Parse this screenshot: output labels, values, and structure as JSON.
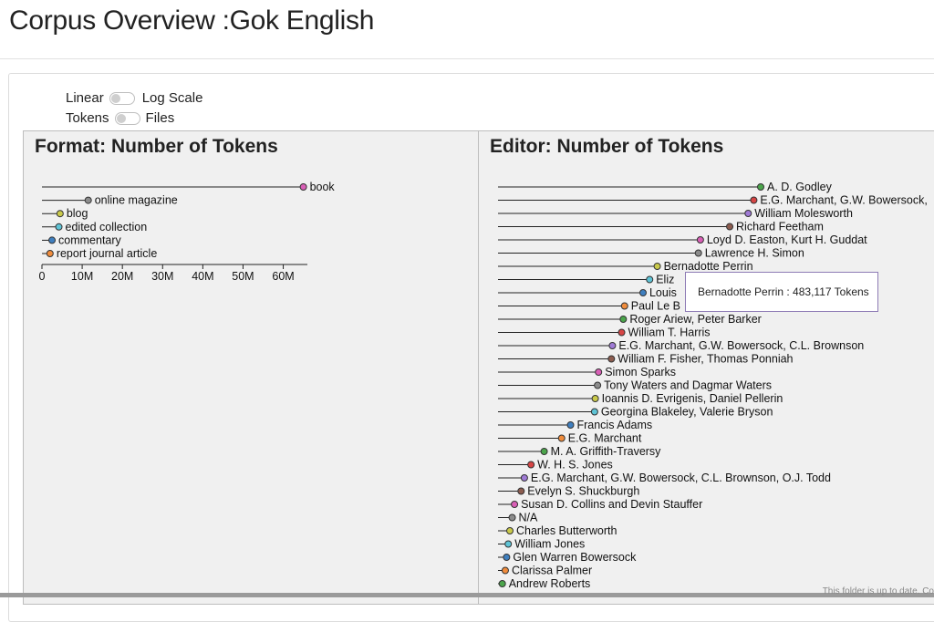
{
  "page": {
    "title": "Corpus Overview :Gok English"
  },
  "controls": {
    "scale": {
      "left_label": "Linear",
      "right_label": "Log Scale"
    },
    "unit": {
      "left_label": "Tokens",
      "right_label": "Files"
    }
  },
  "tooltip": {
    "text": "Bernadotte Perrin : 483,117 Tokens"
  },
  "status": {
    "text": "This folder is up to date.   Co"
  },
  "chart_data": [
    {
      "type": "lollipop",
      "title": "Format: Number of Tokens",
      "xlim": [
        0,
        66000000
      ],
      "x_ticks": [
        0,
        10000000,
        20000000,
        30000000,
        40000000,
        50000000,
        60000000
      ],
      "x_tick_labels": [
        "0",
        "10M",
        "20M",
        "30M",
        "40M",
        "50M",
        "60M"
      ],
      "categories": [
        "book",
        "online magazine",
        "blog",
        "edited collection",
        "commentary",
        "report journal article"
      ],
      "values": [
        65000000,
        11500000,
        4500000,
        4200000,
        2500000,
        2000000
      ],
      "colors": [
        "#d95fb6",
        "#8c8c8c",
        "#c9c94a",
        "#5fc4d6",
        "#3f7fbf",
        "#f08c3c"
      ]
    },
    {
      "type": "lollipop",
      "title": "Editor: Number of Tokens",
      "categories": [
        "A. D. Godley",
        "E.G. Marchant, G.W. Bowersock,",
        "William Molesworth",
        "Richard Feetham",
        "Loyd D. Easton, Kurt H. Guddat",
        "Lawrence H. Simon",
        "Bernadotte Perrin",
        "Eliz",
        "Louis",
        "Paul Le B",
        "Roger Ariew, Peter Barker",
        "William T. Harris",
        "E.G. Marchant, G.W. Bowersock, C.L. Brownson",
        "William F. Fisher, Thomas Ponniah",
        "Simon Sparks",
        "Tony Waters and Dagmar Waters",
        "Ioannis D. Evrigenis, Daniel Pellerin",
        "Georgina Blakeley, Valerie Bryson",
        "Francis Adams",
        "E.G. Marchant",
        "M. A. Griffith-Traversy",
        "W. H. S. Jones",
        "E.G. Marchant, G.W. Bowersock, C.L. Brownson, O.J. Todd",
        "Evelyn S. Shuckburgh",
        "Susan D. Collins and Devin Stauffer",
        "N/A",
        "Charles Butterworth",
        "William Jones",
        "Glen Warren Bowersock",
        "Clarissa Palmer",
        "Andrew Roberts"
      ],
      "values": [
        797000,
        776000,
        759000,
        703000,
        614000,
        608000,
        483117,
        460000,
        440000,
        384000,
        380000,
        375000,
        347000,
        344000,
        305000,
        302000,
        295000,
        293000,
        220000,
        193000,
        140000,
        100000,
        80000,
        70000,
        50000,
        43000,
        36000,
        31000,
        26000,
        22000,
        13000
      ],
      "colors": [
        "#4ba54b",
        "#d64545",
        "#a07bd6",
        "#8c5c4f",
        "#d95fb6",
        "#8c8c8c",
        "#c9c94a",
        "#5fc4d6",
        "#3f7fbf",
        "#f08c3c",
        "#4ba54b",
        "#d64545",
        "#a07bd6",
        "#8c5c4f",
        "#d95fb6",
        "#8c8c8c",
        "#c9c94a",
        "#5fc4d6",
        "#3f7fbf",
        "#f08c3c",
        "#4ba54b",
        "#d64545",
        "#a07bd6",
        "#8c5c4f",
        "#d95fb6",
        "#8c8c8c",
        "#c9c94a",
        "#5fc4d6",
        "#3f7fbf",
        "#f08c3c",
        "#4ba54b"
      ]
    }
  ]
}
